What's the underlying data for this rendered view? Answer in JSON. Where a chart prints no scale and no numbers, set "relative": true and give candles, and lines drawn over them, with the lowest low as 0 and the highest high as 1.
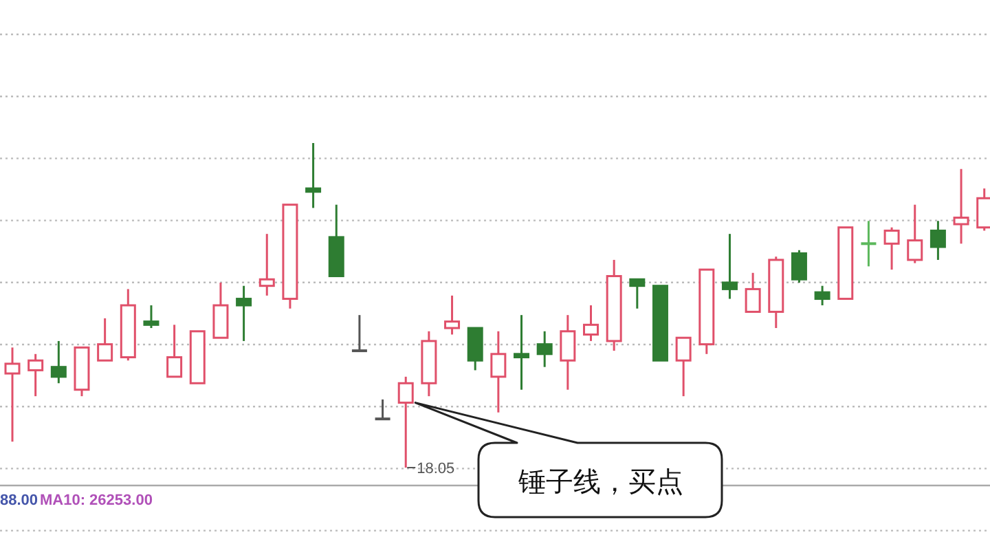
{
  "chart_data": {
    "type": "candlestick",
    "relative": true,
    "grid": true,
    "categories": [
      null,
      null,
      null,
      null,
      null,
      null,
      null,
      null,
      null,
      null,
      null,
      null,
      null,
      null,
      null,
      null,
      null,
      null,
      null,
      null,
      null,
      null,
      null,
      null,
      null,
      null,
      null,
      null,
      null,
      null,
      null,
      null,
      null,
      null,
      null,
      null,
      null,
      null,
      null,
      null,
      null,
      null,
      null
    ],
    "ohlc": [
      [
        0.29,
        0.37,
        0.08,
        0.32
      ],
      [
        0.3,
        0.35,
        0.22,
        0.33
      ],
      [
        0.31,
        0.39,
        0.26,
        0.28
      ],
      [
        0.24,
        0.37,
        0.22,
        0.37
      ],
      [
        0.33,
        0.46,
        0.33,
        0.38
      ],
      [
        0.34,
        0.55,
        0.33,
        0.5
      ],
      [
        0.45,
        0.5,
        0.43,
        0.44
      ],
      [
        0.28,
        0.44,
        0.28,
        0.34
      ],
      [
        0.26,
        0.42,
        0.26,
        0.42
      ],
      [
        0.4,
        0.57,
        0.4,
        0.5
      ],
      [
        0.52,
        0.56,
        0.39,
        0.5
      ],
      [
        0.56,
        0.72,
        0.53,
        0.58
      ],
      [
        0.52,
        0.81,
        0.49,
        0.81
      ],
      [
        0.86,
        1,
        0.8,
        0.85
      ],
      [
        0.71,
        0.81,
        0.59,
        0.59
      ],
      [
        0.36,
        0.47,
        0.36,
        0.36
      ],
      [
        0.15,
        0.21,
        0.15,
        0.15
      ],
      [
        0.2,
        0.28,
        0,
        0.26
      ],
      [
        0.26,
        0.42,
        0.22,
        0.39
      ],
      [
        0.43,
        0.53,
        0.41,
        0.45
      ],
      [
        0.43,
        0.43,
        0.3,
        0.33
      ],
      [
        0.28,
        0.42,
        0.17,
        0.35
      ],
      [
        0.35,
        0.47,
        0.24,
        0.34
      ],
      [
        0.38,
        0.42,
        0.31,
        0.35
      ],
      [
        0.33,
        0.47,
        0.24,
        0.42
      ],
      [
        0.41,
        0.5,
        0.39,
        0.44
      ],
      [
        0.39,
        0.64,
        0.36,
        0.59
      ],
      [
        0.58,
        0.58,
        0.49,
        0.56
      ],
      [
        0.56,
        0.56,
        0.33,
        0.33
      ],
      [
        0.33,
        0.4,
        0.22,
        0.4
      ],
      [
        0.38,
        0.61,
        0.35,
        0.61
      ],
      [
        0.57,
        0.72,
        0.52,
        0.55
      ],
      [
        0.48,
        0.6,
        0.48,
        0.55
      ],
      [
        0.48,
        0.65,
        0.43,
        0.64
      ],
      [
        0.66,
        0.67,
        0.57,
        0.58
      ],
      [
        0.54,
        0.56,
        0.5,
        0.52
      ],
      [
        0.52,
        0.74,
        0.52,
        0.74
      ],
      [
        0.69,
        0.76,
        0.62,
        0.69
      ],
      [
        0.69,
        0.74,
        0.61,
        0.73
      ],
      [
        0.64,
        0.81,
        0.63,
        0.7
      ],
      [
        0.73,
        0.76,
        0.64,
        0.68
      ],
      [
        0.75,
        0.92,
        0.69,
        0.77
      ],
      [
        0.74,
        0.86,
        0.73,
        0.83
      ]
    ],
    "colors": [
      "#e0506a",
      "#e0506a",
      "#2e7d32",
      "#e0506a",
      "#e0506a",
      "#e0506a",
      "#2e7d32",
      "#e0506a",
      "#e0506a",
      "#e0506a",
      "#2e7d32",
      "#e0506a",
      "#e0506a",
      "#2e7d32",
      "#2e7d32",
      "#555555",
      "#555555",
      "#e0506a",
      "#e0506a",
      "#e0506a",
      "#2e7d32",
      "#e0506a",
      "#2e7d32",
      "#2e7d32",
      "#e0506a",
      "#e0506a",
      "#e0506a",
      "#2e7d32",
      "#2e7d32",
      "#e0506a",
      "#e0506a",
      "#2e7d32",
      "#e0506a",
      "#e0506a",
      "#2e7d32",
      "#2e7d32",
      "#e0506a",
      "#5cb85c",
      "#e0506a",
      "#e0506a",
      "#2e7d32",
      "#e0506a",
      "#e0506a"
    ],
    "annotations": [
      "18.05",
      "锤子线，买点",
      "88.00",
      "MA10: 26253.00"
    ]
  }
}
